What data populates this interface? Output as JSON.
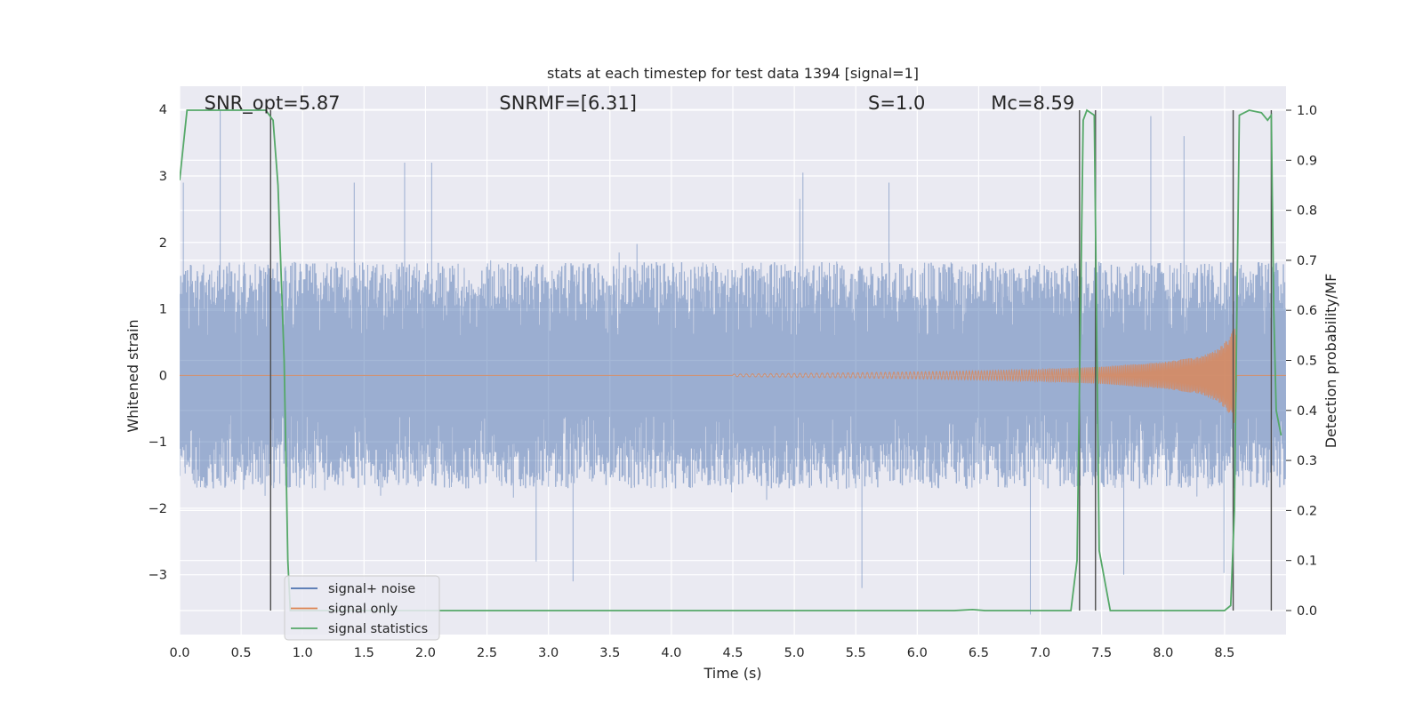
{
  "chart_data": {
    "type": "line",
    "title": "stats at each timestep for test data 1394 [signal=1]",
    "xlabel": "Time (s)",
    "ylabel": "Whitened strain",
    "ylabel_right": "Detection probability/MF",
    "xlim": [
      0.0,
      9.0
    ],
    "ylim": [
      -3.9,
      4.35
    ],
    "ylim_right": [
      -0.048,
      1.048
    ],
    "x_ticks": [
      "0.0",
      "0.5",
      "1.0",
      "1.5",
      "2.0",
      "2.5",
      "3.0",
      "3.5",
      "4.0",
      "4.5",
      "5.0",
      "5.5",
      "6.0",
      "6.5",
      "7.0",
      "7.5",
      "8.0",
      "8.5"
    ],
    "y_ticks": [
      "−3",
      "−2",
      "−1",
      "0",
      "1",
      "2",
      "3",
      "4"
    ],
    "y_ticks_right": [
      "0.0",
      "0.1",
      "0.2",
      "0.3",
      "0.4",
      "0.5",
      "0.6",
      "0.7",
      "0.8",
      "0.9",
      "1.0"
    ],
    "annotations": [
      {
        "text": "SNR_opt=5.87",
        "x": 0.2
      },
      {
        "text": "SNRMF=[6.31]",
        "x": 2.6
      },
      {
        "text": "S=1.0",
        "x": 5.6
      },
      {
        "text": "Mc=8.59",
        "x": 6.6
      }
    ],
    "legend": {
      "placement": "lower-left",
      "entries": [
        {
          "label": "signal+ noise",
          "color": "#4c72b0"
        },
        {
          "label": "signal only",
          "color": "#dd8452"
        },
        {
          "label": "signal statistics",
          "color": "#55a868"
        }
      ]
    },
    "series": [
      {
        "name": "signal+ noise",
        "axis": "left",
        "color": "#4c72b0",
        "description_values": "whitened noise, typical range ±1.6, peaks up to 4.0 near t=0.33 and down to -3.5",
        "peaks": [
          {
            "x": 0.03,
            "y": 2.9
          },
          {
            "x": 0.33,
            "y": 4.0
          },
          {
            "x": 1.42,
            "y": 2.9
          },
          {
            "x": 1.83,
            "y": 3.2
          },
          {
            "x": 2.05,
            "y": 3.2
          },
          {
            "x": 2.9,
            "y": -2.8
          },
          {
            "x": 3.2,
            "y": -3.1
          },
          {
            "x": 5.07,
            "y": 3.05
          },
          {
            "x": 5.55,
            "y": -3.2
          },
          {
            "x": 5.77,
            "y": 2.9
          },
          {
            "x": 6.92,
            "y": -3.6
          },
          {
            "x": 7.68,
            "y": -3.0
          },
          {
            "x": 7.9,
            "y": 3.9
          },
          {
            "x": 8.17,
            "y": 3.6
          },
          {
            "x": 8.88,
            "y": 2.7
          }
        ]
      },
      {
        "name": "signal only",
        "axis": "left",
        "color": "#dd8452",
        "description_values": "chirp with amplitude growing from 0 near t=4.5 to about 0.8 at t=8.59, then 0",
        "envelope": [
          [
            4.5,
            0.02
          ],
          [
            5.5,
            0.04
          ],
          [
            6.5,
            0.07
          ],
          [
            7.0,
            0.09
          ],
          [
            7.5,
            0.13
          ],
          [
            8.0,
            0.2
          ],
          [
            8.3,
            0.28
          ],
          [
            8.45,
            0.4
          ],
          [
            8.55,
            0.6
          ],
          [
            8.59,
            0.8
          ],
          [
            8.6,
            0.0
          ],
          [
            9.0,
            0.0
          ]
        ]
      },
      {
        "name": "signal statistics",
        "axis": "right",
        "color": "#55a868",
        "x": [
          0.0,
          0.06,
          0.12,
          0.7,
          0.73,
          0.76,
          0.8,
          0.85,
          0.88,
          0.9,
          1.0,
          6.3,
          6.45,
          6.55,
          7.25,
          7.3,
          7.35,
          7.38,
          7.44,
          7.48,
          7.57,
          8.5,
          8.55,
          8.58,
          8.62,
          8.7,
          8.8,
          8.85,
          8.88,
          8.9,
          8.92,
          8.96
        ],
        "y": [
          0.86,
          1.0,
          1.0,
          1.0,
          0.99,
          0.98,
          0.85,
          0.5,
          0.1,
          0.0,
          0.0,
          0.0,
          0.002,
          0.0,
          0.0,
          0.1,
          0.98,
          1.0,
          0.99,
          0.12,
          0.0,
          0.0,
          0.01,
          0.2,
          0.99,
          1.0,
          0.995,
          0.98,
          0.99,
          0.6,
          0.4,
          0.35
        ]
      }
    ],
    "vertical_markers": [
      0.74,
      7.32,
      7.45,
      8.57,
      8.88
    ]
  }
}
